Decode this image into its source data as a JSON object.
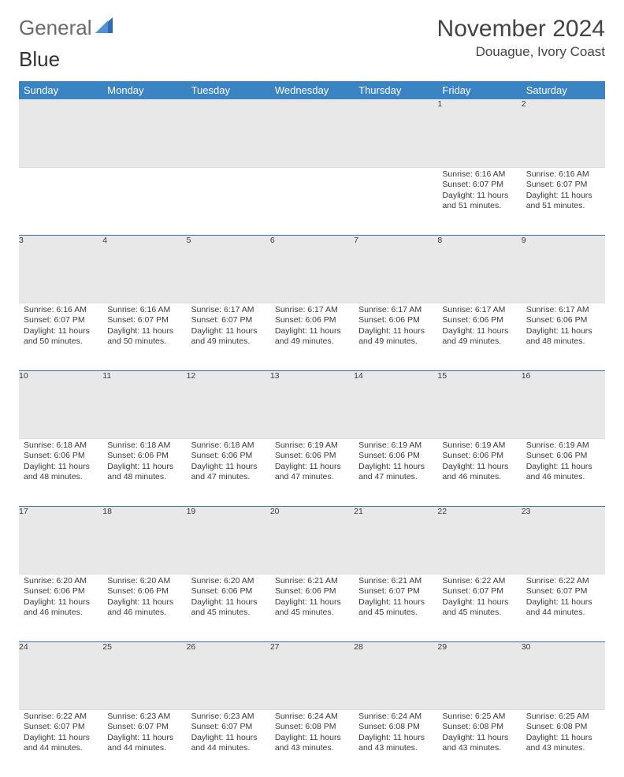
{
  "brand": {
    "word1": "General",
    "word2": "Blue"
  },
  "title": "November 2024",
  "location": "Douague, Ivory Coast",
  "colors": {
    "header_bg": "#3b84c4",
    "header_text": "#ffffff",
    "daynum_bg": "#e8e8e8",
    "divider": "#3b6fa0",
    "text": "#3a3a3a",
    "logo_gray": "#6a6a6a",
    "logo_blue": "#3b7fc4"
  },
  "day_headers": [
    "Sunday",
    "Monday",
    "Tuesday",
    "Wednesday",
    "Thursday",
    "Friday",
    "Saturday"
  ],
  "weeks": [
    [
      {
        "n": "",
        "body": ""
      },
      {
        "n": "",
        "body": ""
      },
      {
        "n": "",
        "body": ""
      },
      {
        "n": "",
        "body": ""
      },
      {
        "n": "",
        "body": ""
      },
      {
        "n": "1",
        "body": "Sunrise: 6:16 AM\nSunset: 6:07 PM\nDaylight: 11 hours and 51 minutes."
      },
      {
        "n": "2",
        "body": "Sunrise: 6:16 AM\nSunset: 6:07 PM\nDaylight: 11 hours and 51 minutes."
      }
    ],
    [
      {
        "n": "3",
        "body": "Sunrise: 6:16 AM\nSunset: 6:07 PM\nDaylight: 11 hours and 50 minutes."
      },
      {
        "n": "4",
        "body": "Sunrise: 6:16 AM\nSunset: 6:07 PM\nDaylight: 11 hours and 50 minutes."
      },
      {
        "n": "5",
        "body": "Sunrise: 6:17 AM\nSunset: 6:07 PM\nDaylight: 11 hours and 49 minutes."
      },
      {
        "n": "6",
        "body": "Sunrise: 6:17 AM\nSunset: 6:06 PM\nDaylight: 11 hours and 49 minutes."
      },
      {
        "n": "7",
        "body": "Sunrise: 6:17 AM\nSunset: 6:06 PM\nDaylight: 11 hours and 49 minutes."
      },
      {
        "n": "8",
        "body": "Sunrise: 6:17 AM\nSunset: 6:06 PM\nDaylight: 11 hours and 49 minutes."
      },
      {
        "n": "9",
        "body": "Sunrise: 6:17 AM\nSunset: 6:06 PM\nDaylight: 11 hours and 48 minutes."
      }
    ],
    [
      {
        "n": "10",
        "body": "Sunrise: 6:18 AM\nSunset: 6:06 PM\nDaylight: 11 hours and 48 minutes."
      },
      {
        "n": "11",
        "body": "Sunrise: 6:18 AM\nSunset: 6:06 PM\nDaylight: 11 hours and 48 minutes."
      },
      {
        "n": "12",
        "body": "Sunrise: 6:18 AM\nSunset: 6:06 PM\nDaylight: 11 hours and 47 minutes."
      },
      {
        "n": "13",
        "body": "Sunrise: 6:19 AM\nSunset: 6:06 PM\nDaylight: 11 hours and 47 minutes."
      },
      {
        "n": "14",
        "body": "Sunrise: 6:19 AM\nSunset: 6:06 PM\nDaylight: 11 hours and 47 minutes."
      },
      {
        "n": "15",
        "body": "Sunrise: 6:19 AM\nSunset: 6:06 PM\nDaylight: 11 hours and 46 minutes."
      },
      {
        "n": "16",
        "body": "Sunrise: 6:19 AM\nSunset: 6:06 PM\nDaylight: 11 hours and 46 minutes."
      }
    ],
    [
      {
        "n": "17",
        "body": "Sunrise: 6:20 AM\nSunset: 6:06 PM\nDaylight: 11 hours and 46 minutes."
      },
      {
        "n": "18",
        "body": "Sunrise: 6:20 AM\nSunset: 6:06 PM\nDaylight: 11 hours and 46 minutes."
      },
      {
        "n": "19",
        "body": "Sunrise: 6:20 AM\nSunset: 6:06 PM\nDaylight: 11 hours and 45 minutes."
      },
      {
        "n": "20",
        "body": "Sunrise: 6:21 AM\nSunset: 6:06 PM\nDaylight: 11 hours and 45 minutes."
      },
      {
        "n": "21",
        "body": "Sunrise: 6:21 AM\nSunset: 6:07 PM\nDaylight: 11 hours and 45 minutes."
      },
      {
        "n": "22",
        "body": "Sunrise: 6:22 AM\nSunset: 6:07 PM\nDaylight: 11 hours and 45 minutes."
      },
      {
        "n": "23",
        "body": "Sunrise: 6:22 AM\nSunset: 6:07 PM\nDaylight: 11 hours and 44 minutes."
      }
    ],
    [
      {
        "n": "24",
        "body": "Sunrise: 6:22 AM\nSunset: 6:07 PM\nDaylight: 11 hours and 44 minutes."
      },
      {
        "n": "25",
        "body": "Sunrise: 6:23 AM\nSunset: 6:07 PM\nDaylight: 11 hours and 44 minutes."
      },
      {
        "n": "26",
        "body": "Sunrise: 6:23 AM\nSunset: 6:07 PM\nDaylight: 11 hours and 44 minutes."
      },
      {
        "n": "27",
        "body": "Sunrise: 6:24 AM\nSunset: 6:08 PM\nDaylight: 11 hours and 43 minutes."
      },
      {
        "n": "28",
        "body": "Sunrise: 6:24 AM\nSunset: 6:08 PM\nDaylight: 11 hours and 43 minutes."
      },
      {
        "n": "29",
        "body": "Sunrise: 6:25 AM\nSunset: 6:08 PM\nDaylight: 11 hours and 43 minutes."
      },
      {
        "n": "30",
        "body": "Sunrise: 6:25 AM\nSunset: 6:08 PM\nDaylight: 11 hours and 43 minutes."
      }
    ]
  ]
}
